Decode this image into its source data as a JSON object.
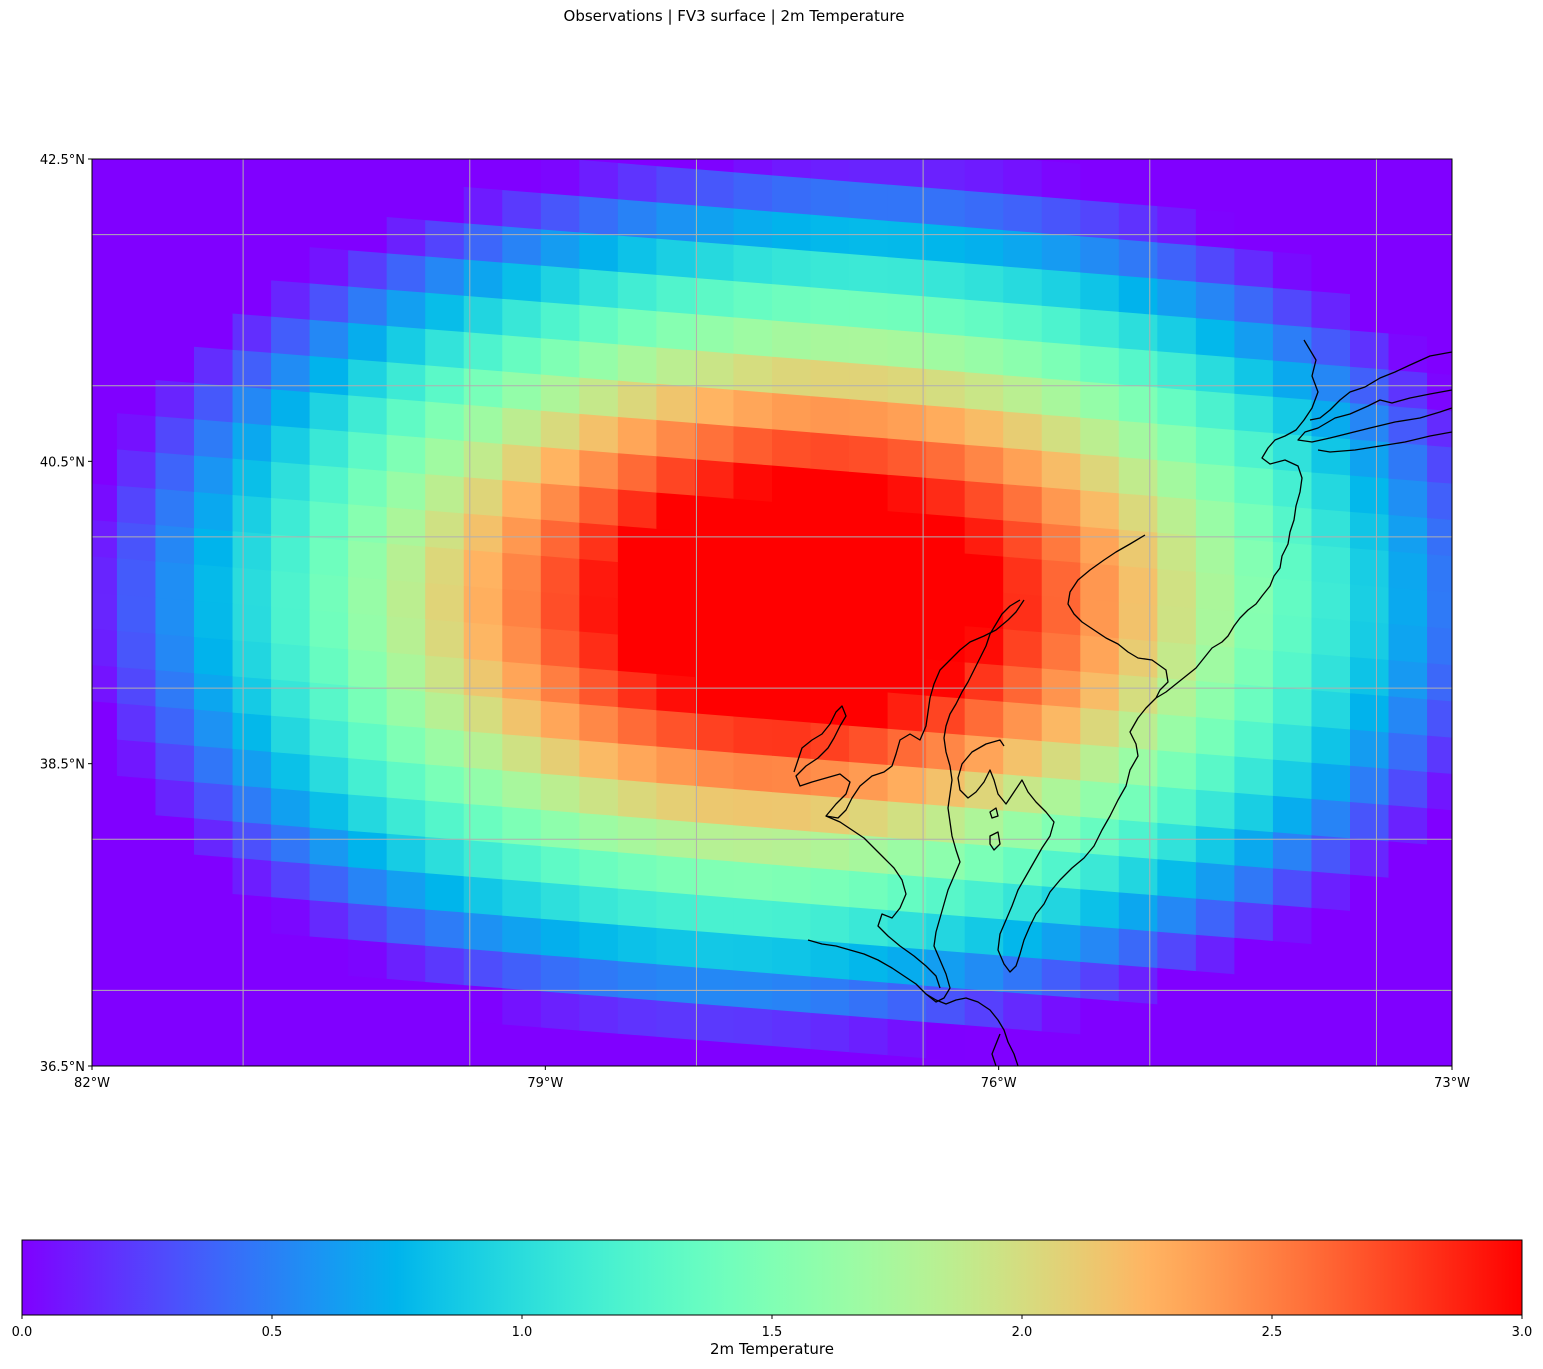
{
  "title": "Observations | FV3 surface | 2m Temperature",
  "map": {
    "extent": {
      "lon": [
        -82,
        -73
      ],
      "lat": [
        36.5,
        42.5
      ]
    },
    "lat_ticks": [
      "42.5°N",
      "40.5°N",
      "38.5°N",
      "36.5°N"
    ],
    "lon_ticks": [
      "82°W",
      "79°W",
      "76°W",
      "73°W"
    ],
    "gridlines": true,
    "coastline_color": "#000000"
  },
  "chart_data": {
    "type": "heatmap",
    "title": "Observations | FV3 surface | 2m Temperature",
    "variable": "2m Temperature",
    "colormap": "rainbow",
    "vmin": 0.0,
    "vmax": 3.0,
    "field_center": {
      "lon": -77.3,
      "lat": 39.6
    },
    "field_max": 3.0,
    "field_min": 0.0,
    "x_range": [
      -82,
      -73
    ],
    "y_range": [
      36.5,
      42.5
    ],
    "xlabel": "",
    "ylabel": ""
  },
  "colorbar": {
    "label": "2m Temperature",
    "ticks": [
      "0.0",
      "0.5",
      "1.0",
      "1.5",
      "2.0",
      "2.5",
      "3.0"
    ],
    "tick_values": [
      0.0,
      0.5,
      1.0,
      1.5,
      2.0,
      2.5,
      3.0
    ],
    "location": "bottom"
  }
}
